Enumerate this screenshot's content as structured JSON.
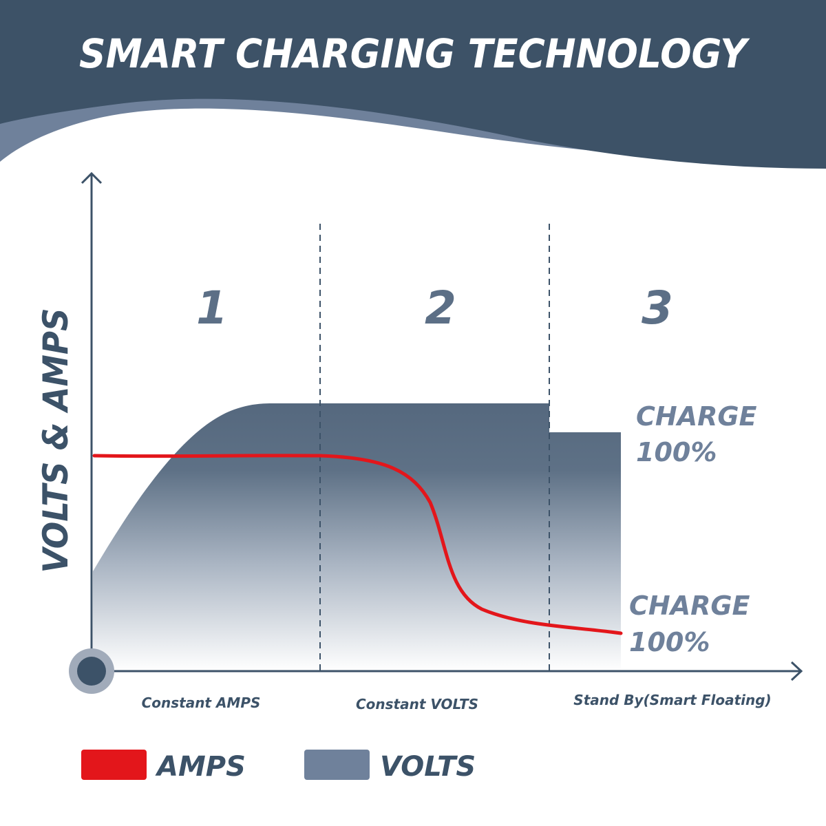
{
  "header": {
    "title": "SMART CHARGING TECHNOLOGY"
  },
  "y_axis_label": "VOLTS & AMPS",
  "phases": [
    {
      "number": "1",
      "caption": "Constant AMPS"
    },
    {
      "number": "2",
      "caption": "Constant VOLTS"
    },
    {
      "number": "3",
      "caption": "Stand By(Smart Floating)"
    }
  ],
  "charge_labels": {
    "volts": {
      "line1": "CHARGE",
      "line2": "100%"
    },
    "amps": {
      "line1": "CHARGE",
      "line2": "100%"
    }
  },
  "legend": [
    {
      "label": "AMPS",
      "color": "#e3161b"
    },
    {
      "label": "VOLTS",
      "color": "#6f819b"
    }
  ],
  "colors": {
    "header_dark": "#3d5267",
    "header_wave_light": "#6f819b",
    "axis": "#3c5268",
    "volts_fill_top": "#56697f",
    "amps_line": "#e3161b"
  }
}
